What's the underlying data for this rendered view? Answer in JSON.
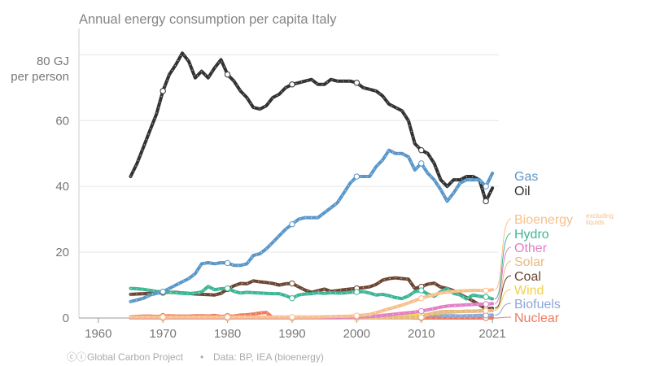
{
  "chart_data": {
    "type": "line",
    "title": "Annual energy consumption per capita Italy",
    "ylabel_top": "80 GJ",
    "ylabel_unit": "per person",
    "x_ticks": [
      "1960",
      "1970",
      "1980",
      "1990",
      "2000",
      "2010",
      "2021"
    ],
    "y_ticks": [
      "0",
      "20",
      "40",
      "60"
    ],
    "xlim": [
      1957,
      2022
    ],
    "ylim": [
      0,
      88
    ],
    "x": [
      1965,
      1966,
      1967,
      1968,
      1969,
      1970,
      1971,
      1972,
      1973,
      1974,
      1975,
      1976,
      1977,
      1978,
      1979,
      1980,
      1981,
      1982,
      1983,
      1984,
      1985,
      1986,
      1987,
      1988,
      1989,
      1990,
      1991,
      1992,
      1993,
      1994,
      1995,
      1996,
      1997,
      1998,
      1999,
      2000,
      2001,
      2002,
      2003,
      2004,
      2005,
      2006,
      2007,
      2008,
      2009,
      2010,
      2011,
      2012,
      2013,
      2014,
      2015,
      2016,
      2017,
      2018,
      2019,
      2020,
      2021
    ],
    "series": [
      {
        "name": "Gas",
        "color": "#5b97c9",
        "values": [
          5,
          5.5,
          6,
          7,
          7.5,
          8,
          9,
          10,
          11,
          12,
          13.5,
          16.5,
          16.8,
          16.5,
          16.8,
          16.7,
          16,
          16,
          16.5,
          19,
          19.5,
          21,
          23,
          25,
          27,
          28.5,
          30,
          30.5,
          30.5,
          30.5,
          32,
          33.5,
          35,
          38,
          41,
          43,
          43,
          43,
          46,
          48,
          51,
          50,
          50,
          49,
          45,
          47,
          44,
          42,
          39,
          35.5,
          38,
          41,
          42,
          42,
          42,
          40,
          44
        ]
      },
      {
        "name": "Oil",
        "color": "#333333",
        "values": [
          43,
          47,
          52,
          57,
          62,
          69,
          74,
          77,
          80.5,
          78,
          73,
          75,
          73,
          76,
          78.5,
          74,
          72,
          69,
          67,
          64,
          63.5,
          64.5,
          67,
          68,
          70,
          71,
          71.5,
          72,
          72.5,
          71,
          71,
          72.5,
          72,
          72,
          72,
          71.5,
          70,
          69.5,
          69,
          67.5,
          65,
          64,
          63,
          60,
          53,
          51,
          50,
          47,
          42,
          40,
          42,
          42,
          43,
          43,
          42,
          35.5,
          39.5
        ]
      },
      {
        "name": "Bioenergy",
        "note": "excluding liquids",
        "color": "#f8c08a",
        "values": [
          0.3,
          0.3,
          0.3,
          0.3,
          0.3,
          0.3,
          0.3,
          0.3,
          0.3,
          0.3,
          0.3,
          0.3,
          0.3,
          0.3,
          0.3,
          0.3,
          0.3,
          0.3,
          0.3,
          0.3,
          0.3,
          0.3,
          0.3,
          0.3,
          0.3,
          0.3,
          0.3,
          0.3,
          0.3,
          0.3,
          0.4,
          0.4,
          0.5,
          0.5,
          0.6,
          0.7,
          0.9,
          1.1,
          1.6,
          2.2,
          2.8,
          3.3,
          3.9,
          4.6,
          5.3,
          6,
          6.6,
          7.1,
          7.6,
          7.9,
          8.1,
          8.2,
          8.3,
          8.4,
          8.4,
          8.3,
          8.6
        ]
      },
      {
        "name": "Hydro",
        "color": "#3eb596",
        "values": [
          9,
          8.9,
          8.7,
          8.4,
          8.1,
          7.9,
          7.8,
          7.7,
          7.5,
          7.4,
          7.6,
          7.9,
          9.6,
          8.6,
          8.9,
          9,
          8.1,
          7.6,
          7.8,
          7.7,
          7.6,
          7.5,
          7.4,
          7.4,
          6.8,
          6,
          7,
          7.3,
          7.4,
          7.7,
          7.5,
          7.7,
          7.6,
          7.6,
          7.8,
          7.9,
          8,
          7.6,
          7,
          7.2,
          6.8,
          6.2,
          5.9,
          6.7,
          8,
          8.4,
          7.3,
          6.6,
          8,
          9,
          7.5,
          7,
          5.8,
          7,
          6.6,
          6.4,
          5.8
        ]
      },
      {
        "name": "Other",
        "color": "#e27fc6",
        "values": [
          0.2,
          0.2,
          0.2,
          0.2,
          0.2,
          0.2,
          0.2,
          0.2,
          0.2,
          0.2,
          0.2,
          0.2,
          0.2,
          0.2,
          0.2,
          0.2,
          0.2,
          0.2,
          0.2,
          0.2,
          0.2,
          0.2,
          0.2,
          0.2,
          0.2,
          0.2,
          0.2,
          0.2,
          0.2,
          0.2,
          0.2,
          0.2,
          0.2,
          0.3,
          0.3,
          0.4,
          0.4,
          0.5,
          0.6,
          0.8,
          1,
          1.2,
          1.4,
          1.6,
          1.8,
          2.1,
          2.5,
          2.9,
          3.3,
          3.6,
          3.8,
          3.9,
          4,
          4.1,
          4.2,
          4.2,
          4.4
        ]
      },
      {
        "name": "Solar",
        "color": "#e6ba82",
        "values": [
          0,
          0,
          0,
          0,
          0,
          0,
          0,
          0,
          0,
          0,
          0,
          0,
          0,
          0,
          0,
          0,
          0,
          0,
          0,
          0,
          0,
          0,
          0,
          0,
          0,
          0,
          0,
          0,
          0,
          0,
          0,
          0,
          0,
          0,
          0,
          0,
          0,
          0,
          0,
          0,
          0,
          0,
          0,
          0,
          0.1,
          0.2,
          1,
          1.6,
          1.9,
          2,
          2,
          1.9,
          2.1,
          2,
          2.1,
          2.2,
          2.3
        ]
      },
      {
        "name": "Coal",
        "color": "#6b4633",
        "values": [
          7.2,
          7.3,
          7.4,
          7.5,
          7.6,
          7.7,
          7.8,
          7.8,
          7.6,
          7.5,
          7.3,
          7.2,
          7.1,
          7,
          7.5,
          8.8,
          9.8,
          10.5,
          10.4,
          11.3,
          11,
          10.8,
          10.5,
          10,
          10.4,
          10.5,
          9.5,
          8.5,
          7.8,
          8.3,
          8.8,
          8.1,
          8.3,
          8.6,
          8.8,
          9,
          9.2,
          9.5,
          10.2,
          11.5,
          12,
          12.2,
          12,
          11.8,
          9,
          9.5,
          10.3,
          10.6,
          9.4,
          9,
          8.3,
          7.2,
          6.2,
          5.2,
          4,
          2.8,
          3
        ]
      },
      {
        "name": "Wind",
        "color": "#f0d24a",
        "values": [
          0,
          0,
          0,
          0,
          0,
          0,
          0,
          0,
          0,
          0,
          0,
          0,
          0,
          0,
          0,
          0,
          0,
          0,
          0,
          0,
          0,
          0,
          0,
          0,
          0,
          0,
          0,
          0,
          0,
          0,
          0,
          0,
          0,
          0,
          0,
          0,
          0,
          0.1,
          0.1,
          0.2,
          0.3,
          0.4,
          0.5,
          0.6,
          0.8,
          1,
          1.1,
          1.4,
          1.6,
          1.7,
          1.8,
          2,
          2,
          2.1,
          2.2,
          2.3,
          2.5
        ]
      },
      {
        "name": "Biofuels",
        "color": "#8ea6d9",
        "values": [
          0,
          0,
          0,
          0,
          0,
          0,
          0,
          0,
          0,
          0,
          0,
          0,
          0,
          0,
          0,
          0,
          0,
          0,
          0,
          0,
          0,
          0,
          0,
          0,
          0,
          0,
          0,
          0,
          0,
          0,
          0,
          0,
          0,
          0,
          0,
          0,
          0,
          0,
          0,
          0,
          0.1,
          0.2,
          0.3,
          0.5,
          0.8,
          0.9,
          0.9,
          0.9,
          0.8,
          0.7,
          0.7,
          0.6,
          0.7,
          0.7,
          0.8,
          0.8,
          0.9
        ]
      },
      {
        "name": "Nuclear",
        "color": "#ee7a5f",
        "values": [
          0.4,
          0.5,
          0.6,
          0.6,
          0.5,
          0.6,
          0.7,
          0.6,
          0.6,
          0.6,
          0.7,
          0.7,
          0.6,
          0.8,
          0.5,
          0.6,
          0.6,
          0.9,
          1,
          1.2,
          1.5,
          1.7,
          0.1,
          0,
          0,
          0,
          0,
          0,
          0,
          0,
          0,
          0,
          0,
          0,
          0,
          0,
          0,
          0,
          0,
          0,
          0,
          0,
          0,
          0,
          0,
          0,
          0,
          0,
          0,
          0,
          0,
          0,
          0,
          0,
          0,
          0,
          0
        ]
      }
    ],
    "footer_logo": "ⓒⓘ",
    "footer_credit": "Global Carbon Project",
    "footer_sep": "•",
    "footer_source": "Data: BP, IEA (bioenergy)"
  }
}
